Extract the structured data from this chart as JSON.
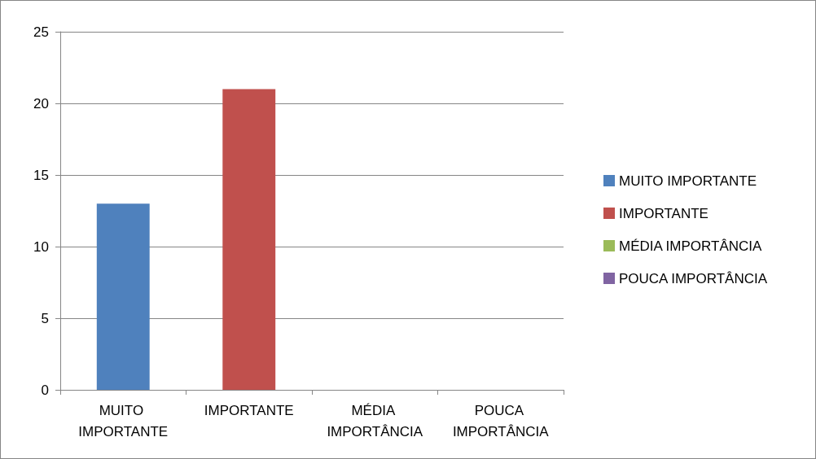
{
  "chart_data": {
    "type": "bar",
    "categories": [
      "MUITO IMPORTANTE",
      "IMPORTANTE",
      "MÉDIA IMPORTÂNCIA",
      "POUCA IMPORTÂNCIA"
    ],
    "series": [
      {
        "name": "MUITO IMPORTANTE",
        "color": "#4f81bd",
        "values": [
          13,
          null,
          null,
          null
        ]
      },
      {
        "name": "IMPORTANTE",
        "color": "#c0504d",
        "values": [
          null,
          21,
          null,
          null
        ]
      },
      {
        "name": "MÉDIA IMPORTÂNCIA",
        "color": "#9bbb59",
        "values": [
          null,
          null,
          0,
          null
        ]
      },
      {
        "name": "POUCA IMPORTÂNCIA",
        "color": "#8064a2",
        "values": [
          null,
          null,
          null,
          0
        ]
      }
    ],
    "stacked": true,
    "ylim": [
      0,
      25
    ],
    "yticks": [
      0,
      5,
      10,
      15,
      20,
      25
    ],
    "grid": "y",
    "legend": "right"
  }
}
